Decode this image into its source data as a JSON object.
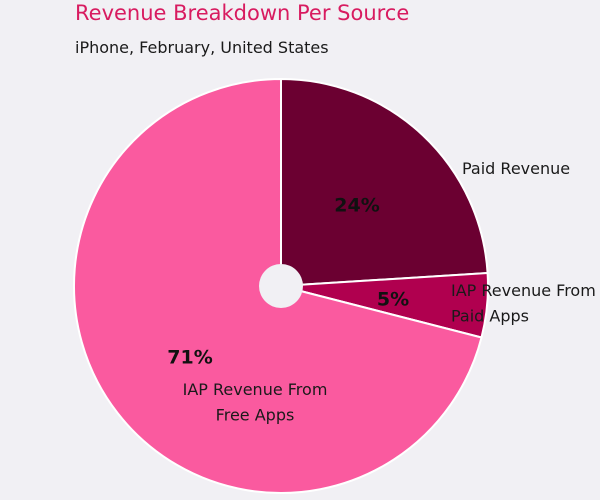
{
  "chart_data": {
    "type": "pie",
    "title": "Revenue Breakdown Per Source",
    "subtitle": "iPhone, February, United States",
    "slices": [
      {
        "label_lines": [
          "Paid Revenue"
        ],
        "value": 24,
        "value_label": "24%",
        "color": "#6b0031"
      },
      {
        "label_lines": [
          "IAP Revenue From",
          "Paid Apps"
        ],
        "value": 5,
        "value_label": "5%",
        "color": "#b0004f"
      },
      {
        "label_lines": [
          "IAP Revenue From",
          "Free Apps"
        ],
        "value": 71,
        "value_label": "71%",
        "color": "#fa5a9f"
      }
    ],
    "center_hole": true,
    "legend": "none"
  }
}
